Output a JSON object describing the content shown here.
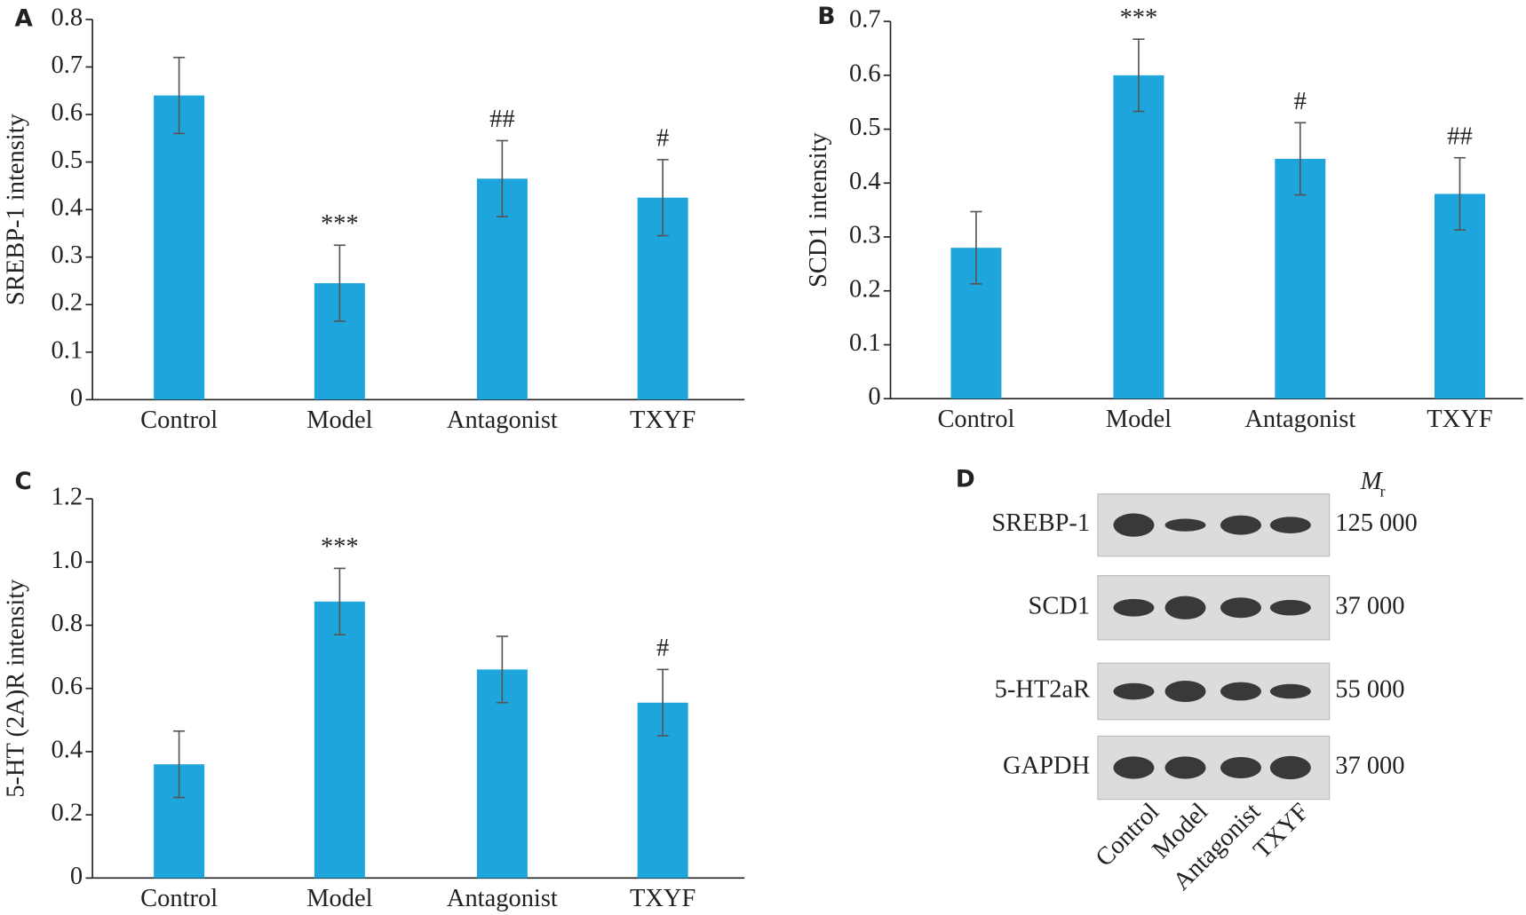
{
  "chart_data": [
    {
      "type": "bar",
      "panel": "A",
      "ylabel": "SREBP-1 intensity",
      "categories": [
        "Control",
        "Model",
        "Antagonist",
        "TXYF"
      ],
      "values": [
        0.64,
        0.245,
        0.465,
        0.425
      ],
      "errors": [
        0.08,
        0.08,
        0.08,
        0.08
      ],
      "annotations": [
        null,
        "***",
        "##",
        "#"
      ],
      "color": "#1ea5dc",
      "ylim": [
        0,
        0.8
      ],
      "yticks": [
        0,
        0.1,
        0.2,
        0.3,
        0.4,
        0.5,
        0.6,
        0.7,
        0.8
      ]
    },
    {
      "type": "bar",
      "panel": "B",
      "ylabel": "SCD1 intensity",
      "categories": [
        "Control",
        "Model",
        "Antagonist",
        "TXYF"
      ],
      "values": [
        0.28,
        0.6,
        0.445,
        0.38
      ],
      "errors": [
        0.067,
        0.067,
        0.067,
        0.067
      ],
      "annotations": [
        null,
        "***",
        "#",
        "##"
      ],
      "color": "#1ea5dc",
      "ylim": [
        0,
        0.7
      ],
      "yticks": [
        0,
        0.1,
        0.2,
        0.3,
        0.4,
        0.5,
        0.6,
        0.7
      ]
    },
    {
      "type": "bar",
      "panel": "C",
      "ylabel": "5-HT (2A)R intensity",
      "categories": [
        "Control",
        "Model",
        "Antagonist",
        "TXYF"
      ],
      "values": [
        0.36,
        0.875,
        0.66,
        0.555
      ],
      "errors": [
        0.105,
        0.105,
        0.105,
        0.105
      ],
      "annotations": [
        null,
        "***",
        null,
        "#"
      ],
      "color": "#1ea5dc",
      "ylim": [
        0,
        1.2
      ],
      "yticks": [
        0,
        0.2,
        0.4,
        0.6,
        0.8,
        {
          "value": 1,
          "label": "1.0"
        },
        1.2
      ]
    }
  ],
  "blot": {
    "panel": "D",
    "mr_label": {
      "main": "M",
      "sub": "r"
    },
    "rows": [
      {
        "name": "SREBP-1",
        "mr": "125 000"
      },
      {
        "name": "SCD1",
        "mr": "37 000"
      },
      {
        "name": "5-HT2aR",
        "mr": "55 000"
      },
      {
        "name": "GAPDH",
        "mr": "37 000"
      }
    ],
    "lanes": [
      "Control",
      "Model",
      "Antagonist",
      "TXYF"
    ]
  }
}
